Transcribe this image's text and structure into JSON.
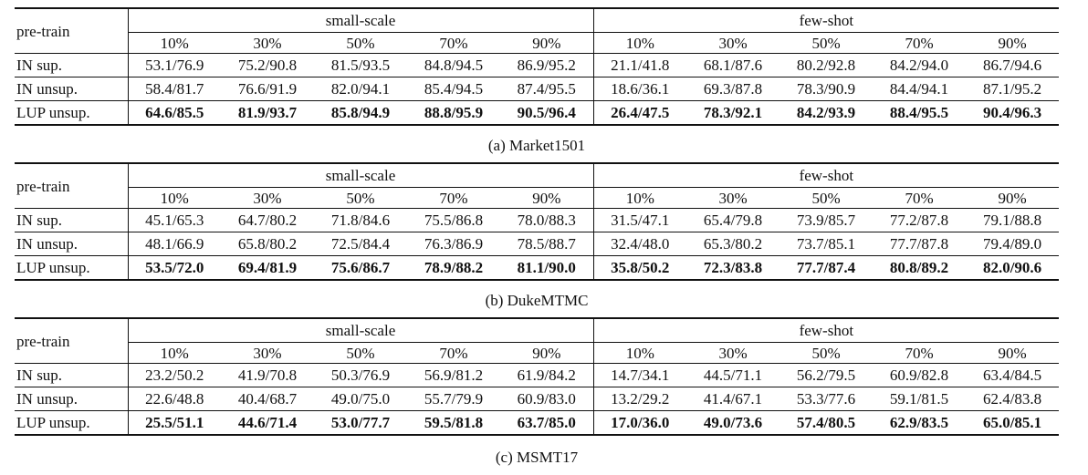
{
  "header": {
    "row_label": "pre-train",
    "groups": [
      "small-scale",
      "few-shot"
    ],
    "percentages": [
      "10%",
      "30%",
      "50%",
      "70%",
      "90%",
      "10%",
      "30%",
      "50%",
      "70%",
      "90%"
    ]
  },
  "tables": [
    {
      "caption": "(a) Market1501",
      "rows": [
        {
          "label": "IN sup.",
          "bold": false,
          "values": [
            "53.1/76.9",
            "75.2/90.8",
            "81.5/93.5",
            "84.8/94.5",
            "86.9/95.2",
            "21.1/41.8",
            "68.1/87.6",
            "80.2/92.8",
            "84.2/94.0",
            "86.7/94.6"
          ]
        },
        {
          "label": "IN unsup.",
          "bold": false,
          "values": [
            "58.4/81.7",
            "76.6/91.9",
            "82.0/94.1",
            "85.4/94.5",
            "87.4/95.5",
            "18.6/36.1",
            "69.3/87.8",
            "78.3/90.9",
            "84.4/94.1",
            "87.1/95.2"
          ]
        },
        {
          "label": "LUP unsup.",
          "bold": true,
          "values": [
            "64.6/85.5",
            "81.9/93.7",
            "85.8/94.9",
            "88.8/95.9",
            "90.5/96.4",
            "26.4/47.5",
            "78.3/92.1",
            "84.2/93.9",
            "88.4/95.5",
            "90.4/96.3"
          ]
        }
      ]
    },
    {
      "caption": "(b) DukeMTMC",
      "rows": [
        {
          "label": "IN sup.",
          "bold": false,
          "values": [
            "45.1/65.3",
            "64.7/80.2",
            "71.8/84.6",
            "75.5/86.8",
            "78.0/88.3",
            "31.5/47.1",
            "65.4/79.8",
            "73.9/85.7",
            "77.2/87.8",
            "79.1/88.8"
          ]
        },
        {
          "label": "IN unsup.",
          "bold": false,
          "values": [
            "48.1/66.9",
            "65.8/80.2",
            "72.5/84.4",
            "76.3/86.9",
            "78.5/88.7",
            "32.4/48.0",
            "65.3/80.2",
            "73.7/85.1",
            "77.7/87.8",
            "79.4/89.0"
          ]
        },
        {
          "label": "LUP unsup.",
          "bold": true,
          "values": [
            "53.5/72.0",
            "69.4/81.9",
            "75.6/86.7",
            "78.9/88.2",
            "81.1/90.0",
            "35.8/50.2",
            "72.3/83.8",
            "77.7/87.4",
            "80.8/89.2",
            "82.0/90.6"
          ]
        }
      ]
    },
    {
      "caption": "(c) MSMT17",
      "rows": [
        {
          "label": "IN sup.",
          "bold": false,
          "values": [
            "23.2/50.2",
            "41.9/70.8",
            "50.3/76.9",
            "56.9/81.2",
            "61.9/84.2",
            "14.7/34.1",
            "44.5/71.1",
            "56.2/79.5",
            "60.9/82.8",
            "63.4/84.5"
          ]
        },
        {
          "label": "IN unsup.",
          "bold": false,
          "values": [
            "22.6/48.8",
            "40.4/68.7",
            "49.0/75.0",
            "55.7/79.9",
            "60.9/83.0",
            "13.2/29.2",
            "41.4/67.1",
            "53.3/77.6",
            "59.1/81.5",
            "62.4/83.8"
          ]
        },
        {
          "label": "LUP unsup.",
          "bold": true,
          "values": [
            "25.5/51.1",
            "44.6/71.4",
            "53.0/77.7",
            "59.5/81.8",
            "63.7/85.0",
            "17.0/36.0",
            "49.0/73.6",
            "57.4/80.5",
            "62.9/83.5",
            "65.0/85.1"
          ]
        }
      ]
    }
  ]
}
